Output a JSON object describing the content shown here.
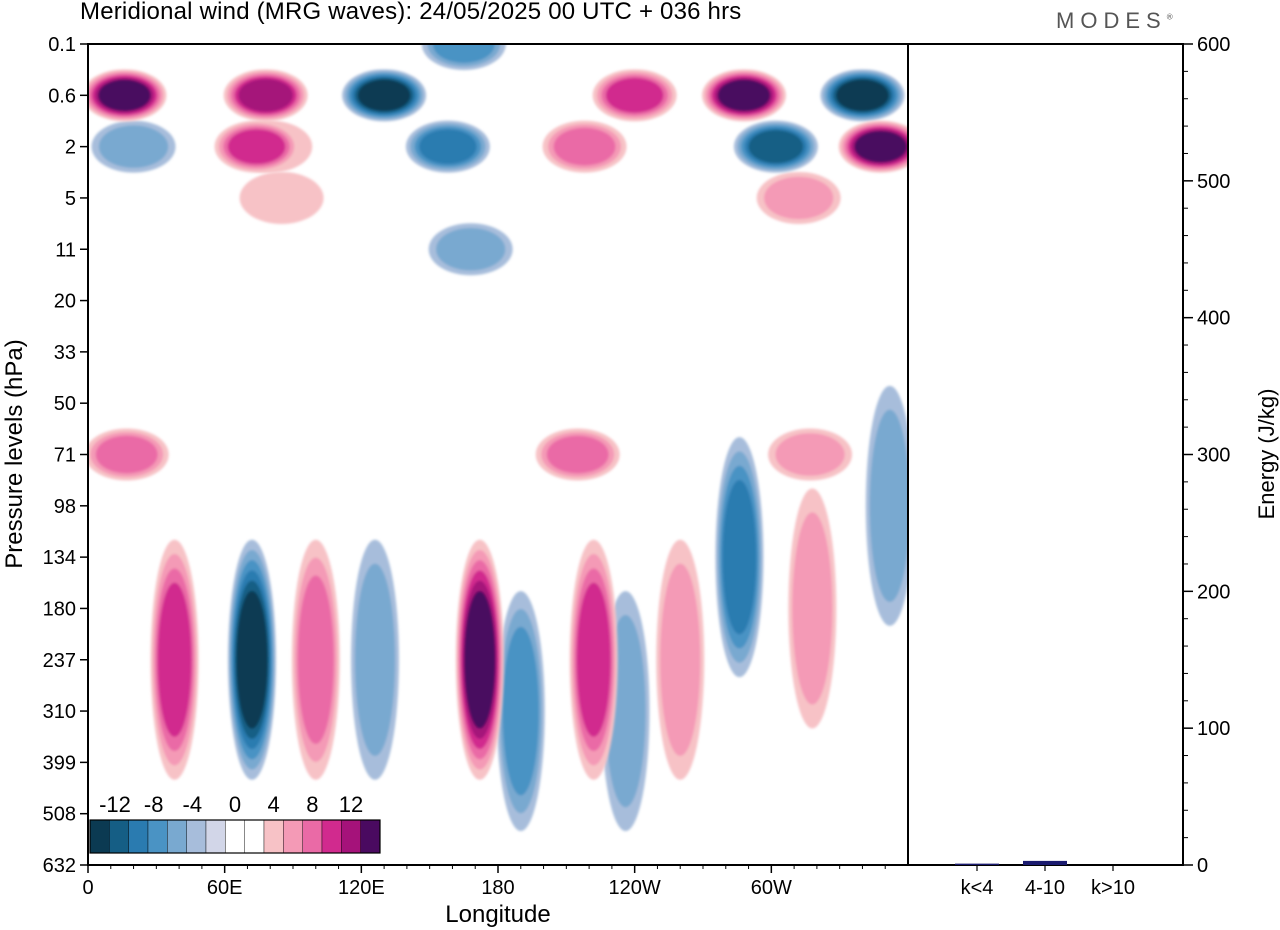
{
  "header": {
    "title": "Meridional wind (MRG waves):  24/05/2025  00 UTC  + 036 hrs",
    "brand": "MODES",
    "brand_mark": "®"
  },
  "colors": {
    "levels": [
      {
        "label": "-14",
        "color": "#0b3a52"
      },
      {
        "label": "-12",
        "color": "#155e85"
      },
      {
        "label": "-10",
        "color": "#2a7bb0"
      },
      {
        "label": "-8",
        "color": "#4a93c4"
      },
      {
        "label": "-6",
        "color": "#79a9d0"
      },
      {
        "label": "-4",
        "color": "#a7bddb"
      },
      {
        "label": "-2",
        "color": "#d2d6e8"
      },
      {
        "label": "0",
        "color": "#ffffff"
      },
      {
        "label": "2",
        "color": "#ffffff"
      },
      {
        "label": "4",
        "color": "#f7c2c6"
      },
      {
        "label": "6",
        "color": "#f49ab6"
      },
      {
        "label": "8",
        "color": "#ea6aa6"
      },
      {
        "label": "10",
        "color": "#d12a8e"
      },
      {
        "label": "12",
        "color": "#a5127a"
      },
      {
        "label": "14",
        "color": "#4a0a60"
      }
    ],
    "bar_color": "#1a1a6e"
  },
  "chart_data": [
    {
      "type": "heatmap",
      "title": "Meridional wind (MRG waves):  24/05/2025  00 UTC  + 036 hrs",
      "xlabel": "Longitude",
      "ylabel": "Pressure levels (hPa)",
      "x_ticks": [
        "0",
        "60E",
        "120E",
        "180",
        "120W",
        "60W"
      ],
      "x_tick_degrees": [
        0,
        60,
        120,
        180,
        240,
        300
      ],
      "xlim": [
        0,
        360
      ],
      "y_ticks": [
        "0.1",
        "0.6",
        "2",
        "5",
        "11",
        "20",
        "33",
        "50",
        "71",
        "98",
        "134",
        "180",
        "237",
        "310",
        "399",
        "508",
        "632"
      ],
      "colorbar_labels": [
        "-12",
        "-8",
        "-4",
        "0",
        "4",
        "8",
        "12"
      ],
      "features": [
        {
          "lon": 16,
          "plev": "0.6",
          "value": 14
        },
        {
          "lon": 78,
          "plev": "0.6",
          "value": 12
        },
        {
          "lon": 130,
          "plev": "0.6",
          "value": -14
        },
        {
          "lon": 165,
          "plev": "0.1",
          "value": -8
        },
        {
          "lon": 240,
          "plev": "0.6",
          "value": 10
        },
        {
          "lon": 288,
          "plev": "0.6",
          "value": 14
        },
        {
          "lon": 340,
          "plev": "0.6",
          "value": -14
        },
        {
          "lon": 348,
          "plev": "2",
          "value": 14
        },
        {
          "lon": 74,
          "plev": "2",
          "value": 10
        },
        {
          "lon": 80,
          "plev": "2",
          "value": 4
        },
        {
          "lon": 158,
          "plev": "2",
          "value": -10
        },
        {
          "lon": 302,
          "plev": "2",
          "value": -12
        },
        {
          "lon": 20,
          "plev": "2",
          "value": -6
        },
        {
          "lon": 218,
          "plev": "2",
          "value": 8
        },
        {
          "lon": 312,
          "plev": "5",
          "value": 6
        },
        {
          "lon": 85,
          "plev": "5",
          "value": 4
        },
        {
          "lon": 168,
          "plev": "11",
          "value": -6
        },
        {
          "lon": 17,
          "plev": "71",
          "value": 8
        },
        {
          "lon": 215,
          "plev": "71",
          "value": 8
        },
        {
          "lon": 317,
          "plev": "71",
          "value": 6
        },
        {
          "lon": 38,
          "plev": "237",
          "value": 10
        },
        {
          "lon": 72,
          "plev": "237",
          "value": -14
        },
        {
          "lon": 100,
          "plev": "237",
          "value": 8
        },
        {
          "lon": 126,
          "plev": "237",
          "value": -6
        },
        {
          "lon": 172,
          "plev": "237",
          "value": 14
        },
        {
          "lon": 190,
          "plev": "310",
          "value": -8
        },
        {
          "lon": 222,
          "plev": "237",
          "value": 10
        },
        {
          "lon": 236,
          "plev": "310",
          "value": -6
        },
        {
          "lon": 260,
          "plev": "237",
          "value": 6
        },
        {
          "lon": 286,
          "plev": "134",
          "value": -10
        },
        {
          "lon": 318,
          "plev": "180",
          "value": 6
        },
        {
          "lon": 352,
          "plev": "98",
          "value": -6
        }
      ]
    },
    {
      "type": "bar",
      "ylabel": "Energy (J/kg)",
      "categories": [
        "k<4",
        "4-10",
        "k>10"
      ],
      "values": [
        1,
        3,
        0
      ],
      "ylim": [
        0,
        600
      ],
      "y_ticks": [
        "0",
        "100",
        "200",
        "300",
        "400",
        "500",
        "600"
      ]
    }
  ]
}
